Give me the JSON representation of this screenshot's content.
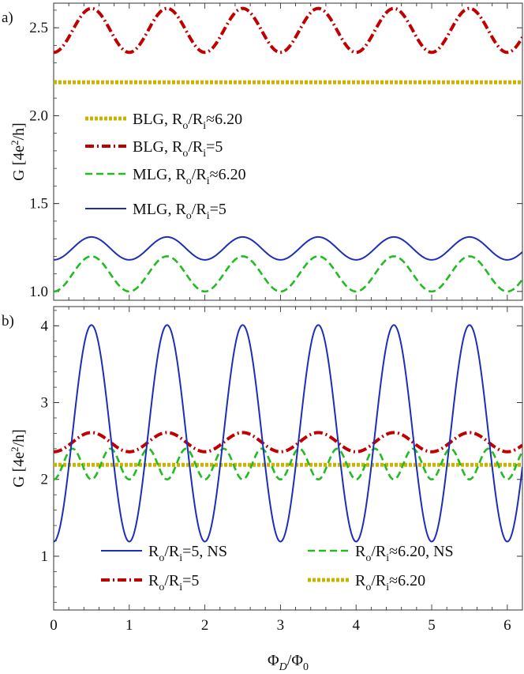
{
  "chart_data": [
    {
      "panel_label": "a)",
      "type": "line",
      "ylabel": "G [4e²/h]",
      "xlim": [
        0,
        6.2
      ],
      "ylim": [
        0.95,
        2.64
      ],
      "yticks": [
        "1.0",
        "1.5",
        "2.0",
        "2.5"
      ],
      "ytick_values": [
        1.0,
        1.5,
        2.0,
        2.5
      ],
      "legend_position": "left",
      "series": [
        {
          "name": "BLG, Ro/Ri≈6.20",
          "color": "#c8b400",
          "style": "dotted",
          "mean": 2.19,
          "amplitude": 0.0,
          "period": 1.0,
          "phase": 0
        },
        {
          "name": "BLG, Ro/Ri=5",
          "color": "#c00000",
          "style": "dashdot",
          "mean": 2.485,
          "amplitude": 0.125,
          "period": 1.0,
          "min_at": 0.0
        },
        {
          "name": "MLG, Ro/Ri≈6.20",
          "color": "#22bb22",
          "style": "dashed",
          "mean": 1.1,
          "amplitude": 0.1,
          "period": 1.0,
          "min_at": 0.0
        },
        {
          "name": "MLG, Ro/Ri=5",
          "color": "#1c2fb8",
          "style": "solid",
          "mean": 1.245,
          "amplitude": 0.065,
          "period": 1.0,
          "min_at": 0.0
        }
      ],
      "legend": [
        {
          "label": "BLG, ",
          "sub": "R",
          "o": "o",
          "rest": "/R",
          "i": "i",
          "tail": "≈6.20"
        },
        {
          "label": "BLG, ",
          "sub": "R",
          "o": "o",
          "rest": "/R",
          "i": "i",
          "tail": "=5"
        },
        {
          "label": "MLG, ",
          "sub": "R",
          "o": "o",
          "rest": "/R",
          "i": "i",
          "tail": "≈6.20"
        },
        {
          "label": "MLG, ",
          "sub": "R",
          "o": "o",
          "rest": "/R",
          "i": "i",
          "tail": "=5"
        }
      ]
    },
    {
      "panel_label": "b)",
      "type": "line",
      "xlabel": "ΦD/Φ0",
      "ylabel": "G [4e²/h]",
      "xlim": [
        0,
        6.2
      ],
      "ylim": [
        0.3,
        4.25
      ],
      "yticks": [
        "1",
        "2",
        "3",
        "4"
      ],
      "ytick_values": [
        1,
        2,
        3,
        4
      ],
      "xticks": [
        "0",
        "1",
        "2",
        "3",
        "4",
        "5",
        "6"
      ],
      "xtick_values": [
        0,
        1,
        2,
        3,
        4,
        5,
        6
      ],
      "legend_position": "bottom",
      "series": [
        {
          "name": "Ro/Ri=5, NS",
          "color": "#1c2fb8",
          "style": "solid",
          "mean": 2.6,
          "amplitude": 1.41,
          "period": 1.0,
          "min_at": 0.0
        },
        {
          "name": "Ro/Ri≈6.20, NS",
          "color": "#22bb22",
          "style": "dashed",
          "mean": 2.2,
          "amplitude": 0.2,
          "period": 0.5,
          "min_at": 0.0
        },
        {
          "name": "Ro/Ri=5",
          "color": "#c00000",
          "style": "dashdot",
          "mean": 2.485,
          "amplitude": 0.125,
          "period": 1.0,
          "min_at": 0.0
        },
        {
          "name": "Ro/Ri≈6.20",
          "color": "#c8b400",
          "style": "dotted",
          "mean": 2.19,
          "amplitude": 0.0,
          "period": 1.0,
          "min_at": 0.0
        }
      ],
      "legend": [
        {
          "prefix": "R",
          "o": "o",
          "rest": "/R",
          "i": "i",
          "tail": "=5, NS"
        },
        {
          "prefix": "R",
          "o": "o",
          "rest": "/R",
          "i": "i",
          "tail": "≈6.20, NS"
        },
        {
          "prefix": "R",
          "o": "o",
          "rest": "/R",
          "i": "i",
          "tail": "=5"
        },
        {
          "prefix": "R",
          "o": "o",
          "rest": "/R",
          "i": "i",
          "tail": "≈6.20"
        }
      ]
    }
  ],
  "x_axis_label": {
    "phi": "Φ",
    "D": "D",
    "slash": "/Φ",
    "zero": "0"
  },
  "y_axis_label": {
    "G": "G [4e",
    "sup": "2",
    "tail": "/h]"
  }
}
